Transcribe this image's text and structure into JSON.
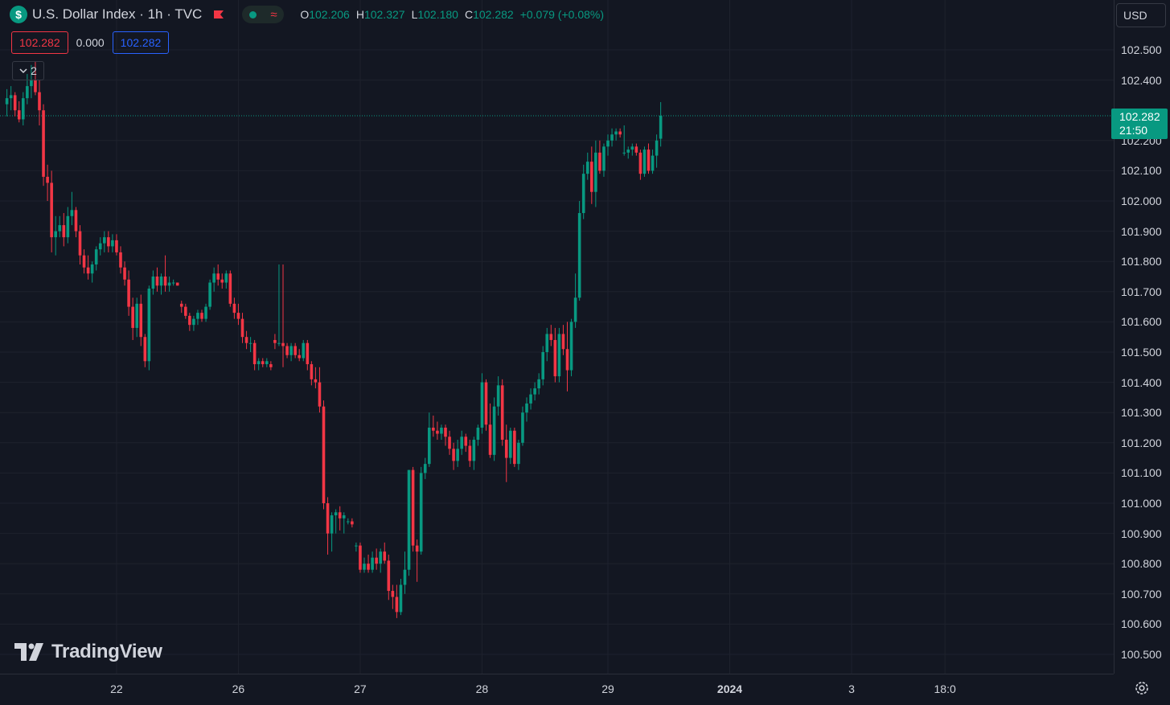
{
  "header": {
    "symbol_icon": "$",
    "title": "U.S. Dollar Index · 1h · TVC",
    "flag_icon": "flag-icon",
    "market_status_icon": "market-open-dot-icon",
    "data_icon": "wave-icon",
    "ohlc": {
      "o_label": "O",
      "o_value": "102.206",
      "h_label": "H",
      "h_value": "102.327",
      "l_label": "L",
      "l_value": "102.180",
      "c_label": "C",
      "c_value": "102.282",
      "change": "+0.079 (+0.08%)"
    }
  },
  "trade": {
    "sell_price": "102.282",
    "spread": "0.000",
    "buy_price": "102.282"
  },
  "indicators_toggle": {
    "count": "2"
  },
  "currency": "USD",
  "last_price": {
    "price": "102.282",
    "countdown": "21:50"
  },
  "logo_text": "TradingView",
  "colors": {
    "background": "#131722",
    "up": "#089981",
    "down": "#f23645",
    "text": "#d1d4dc",
    "grid": "#1e222d"
  },
  "chart_data": {
    "type": "candlestick",
    "ylim": [
      100.45,
      102.62
    ],
    "y_ticks": [
      "102.500",
      "102.400",
      "102.200",
      "102.100",
      "102.000",
      "101.900",
      "101.800",
      "101.700",
      "101.600",
      "101.500",
      "101.400",
      "101.300",
      "101.200",
      "101.100",
      "101.000",
      "100.900",
      "100.800",
      "100.700",
      "100.600",
      "100.500"
    ],
    "x_ticks": [
      {
        "label": "22",
        "bar": 27,
        "bold": false
      },
      {
        "label": "26",
        "bar": 57,
        "bold": false
      },
      {
        "label": "27",
        "bar": 87,
        "bold": false
      },
      {
        "label": "28",
        "bar": 117,
        "bold": false
      },
      {
        "label": "29",
        "bar": 148,
        "bold": false
      },
      {
        "label": "2024",
        "bar": 178,
        "bold": true
      },
      {
        "label": "3",
        "bar": 208,
        "bold": false
      },
      {
        "label": "18:0",
        "bar": 231,
        "bold": false
      }
    ],
    "last_price": 102.282,
    "ohlc": [
      [
        102.32,
        102.37,
        102.28,
        102.34
      ],
      [
        102.34,
        102.38,
        102.3,
        102.35
      ],
      [
        102.35,
        102.36,
        102.28,
        102.3
      ],
      [
        102.3,
        102.33,
        102.26,
        102.27
      ],
      [
        102.27,
        102.36,
        102.25,
        102.34
      ],
      [
        102.34,
        102.42,
        102.32,
        102.38
      ],
      [
        102.38,
        102.45,
        102.34,
        102.4
      ],
      [
        102.4,
        102.46,
        102.35,
        102.36
      ],
      [
        102.36,
        102.4,
        102.25,
        102.3
      ],
      [
        102.3,
        102.32,
        102.05,
        102.08
      ],
      [
        102.08,
        102.12,
        102.0,
        102.06
      ],
      [
        102.06,
        102.1,
        101.83,
        101.88
      ],
      [
        101.88,
        101.95,
        101.82,
        101.9
      ],
      [
        101.9,
        101.95,
        101.88,
        101.92
      ],
      [
        101.92,
        101.96,
        101.85,
        101.88
      ],
      [
        101.88,
        101.98,
        101.86,
        101.95
      ],
      [
        101.95,
        102.03,
        101.92,
        101.97
      ],
      [
        101.97,
        101.98,
        101.88,
        101.9
      ],
      [
        101.9,
        101.92,
        101.79,
        101.82
      ],
      [
        101.82,
        101.84,
        101.76,
        101.78
      ],
      [
        101.78,
        101.82,
        101.74,
        101.76
      ],
      [
        101.76,
        101.8,
        101.73,
        101.79
      ],
      [
        101.79,
        101.85,
        101.77,
        101.84
      ],
      [
        101.84,
        101.88,
        101.82,
        101.86
      ],
      [
        101.86,
        101.9,
        101.83,
        101.88
      ],
      [
        101.88,
        101.9,
        101.83,
        101.85
      ],
      [
        101.85,
        101.89,
        101.83,
        101.87
      ],
      [
        101.87,
        101.89,
        101.82,
        101.83
      ],
      [
        101.83,
        101.85,
        101.76,
        101.78
      ],
      [
        101.78,
        101.8,
        101.72,
        101.74
      ],
      [
        101.74,
        101.77,
        101.62,
        101.65
      ],
      [
        101.65,
        101.68,
        101.54,
        101.58
      ],
      [
        101.58,
        101.68,
        101.55,
        101.66
      ],
      [
        101.66,
        101.69,
        101.52,
        101.55
      ],
      [
        101.55,
        101.56,
        101.45,
        101.47
      ],
      [
        101.47,
        101.72,
        101.44,
        101.71
      ],
      [
        101.71,
        101.77,
        101.69,
        101.75
      ],
      [
        101.75,
        101.78,
        101.7,
        101.72
      ],
      [
        101.72,
        101.76,
        101.69,
        101.75
      ],
      [
        101.75,
        101.82,
        101.7,
        101.72
      ],
      [
        101.72,
        101.75,
        101.7,
        101.73
      ],
      [
        101.73,
        101.74,
        101.72,
        101.73
      ],
      [
        101.73,
        101.73,
        101.72,
        101.72
      ],
      [
        101.66,
        101.67,
        101.63,
        101.65
      ],
      [
        101.65,
        101.66,
        101.61,
        101.62
      ],
      [
        101.62,
        101.63,
        101.57,
        101.59
      ],
      [
        101.59,
        101.62,
        101.57,
        101.61
      ],
      [
        101.61,
        101.64,
        101.59,
        101.63
      ],
      [
        101.63,
        101.64,
        101.6,
        101.61
      ],
      [
        101.61,
        101.66,
        101.6,
        101.65
      ],
      [
        101.65,
        101.74,
        101.64,
        101.73
      ],
      [
        101.73,
        101.78,
        101.7,
        101.76
      ],
      [
        101.76,
        101.79,
        101.72,
        101.74
      ],
      [
        101.74,
        101.76,
        101.71,
        101.73
      ],
      [
        101.73,
        101.77,
        101.71,
        101.76
      ],
      [
        101.76,
        101.77,
        101.65,
        101.66
      ],
      [
        101.66,
        101.68,
        101.61,
        101.63
      ],
      [
        101.63,
        101.66,
        101.59,
        101.61
      ],
      [
        101.61,
        101.63,
        101.53,
        101.55
      ],
      [
        101.55,
        101.57,
        101.51,
        101.53
      ],
      [
        101.53,
        101.55,
        101.5,
        101.53
      ],
      [
        101.53,
        101.54,
        101.44,
        101.46
      ],
      [
        101.46,
        101.48,
        101.44,
        101.47
      ],
      [
        101.47,
        101.48,
        101.45,
        101.46
      ],
      [
        101.46,
        101.48,
        101.45,
        101.47
      ],
      [
        101.46,
        101.47,
        101.44,
        101.45
      ],
      [
        101.54,
        101.56,
        101.51,
        101.53
      ],
      [
        101.53,
        101.79,
        101.52,
        101.53
      ],
      [
        101.53,
        101.79,
        101.45,
        101.52
      ],
      [
        101.52,
        101.53,
        101.48,
        101.49
      ],
      [
        101.49,
        101.53,
        101.47,
        101.52
      ],
      [
        101.52,
        101.53,
        101.48,
        101.49
      ],
      [
        101.49,
        101.51,
        101.47,
        101.48
      ],
      [
        101.48,
        101.54,
        101.47,
        101.53
      ],
      [
        101.53,
        101.54,
        101.44,
        101.46
      ],
      [
        101.46,
        101.47,
        101.39,
        101.41
      ],
      [
        101.41,
        101.45,
        101.38,
        101.4
      ],
      [
        101.4,
        101.45,
        101.3,
        101.32
      ],
      [
        101.32,
        101.34,
        100.98,
        101.0
      ],
      [
        101.0,
        101.02,
        100.83,
        100.9
      ],
      [
        100.9,
        100.97,
        100.84,
        100.96
      ],
      [
        100.96,
        100.98,
        100.9,
        100.97
      ],
      [
        100.97,
        100.99,
        100.91,
        100.95
      ],
      [
        100.95,
        100.97,
        100.9,
        100.96
      ],
      [
        100.94,
        100.95,
        100.93,
        100.94
      ],
      [
        100.94,
        100.95,
        100.92,
        100.93
      ],
      [
        100.86,
        100.87,
        100.84,
        100.86
      ],
      [
        100.86,
        100.87,
        100.77,
        100.78
      ],
      [
        100.78,
        100.82,
        100.77,
        100.8
      ],
      [
        100.8,
        100.83,
        100.77,
        100.78
      ],
      [
        100.78,
        100.84,
        100.77,
        100.82
      ],
      [
        100.82,
        100.85,
        100.78,
        100.8
      ],
      [
        100.8,
        100.85,
        100.77,
        100.84
      ],
      [
        100.84,
        100.87,
        100.8,
        100.81
      ],
      [
        100.81,
        100.83,
        100.68,
        100.71
      ],
      [
        100.71,
        100.73,
        100.65,
        100.69
      ],
      [
        100.69,
        100.73,
        100.62,
        100.64
      ],
      [
        100.64,
        100.75,
        100.63,
        100.73
      ],
      [
        100.73,
        100.84,
        100.7,
        100.78
      ],
      [
        100.78,
        101.11,
        100.76,
        101.11
      ],
      [
        101.11,
        101.12,
        100.84,
        100.86
      ],
      [
        100.86,
        100.88,
        100.74,
        100.84
      ],
      [
        100.84,
        101.12,
        100.83,
        101.1
      ],
      [
        101.1,
        101.15,
        101.08,
        101.13
      ],
      [
        101.13,
        101.3,
        101.12,
        101.25
      ],
      [
        101.25,
        101.29,
        101.22,
        101.24
      ],
      [
        101.24,
        101.27,
        101.21,
        101.23
      ],
      [
        101.23,
        101.26,
        101.21,
        101.25
      ],
      [
        101.25,
        101.26,
        101.19,
        101.22
      ],
      [
        101.22,
        101.24,
        101.16,
        101.18
      ],
      [
        101.18,
        101.2,
        101.11,
        101.14
      ],
      [
        101.14,
        101.21,
        101.12,
        101.18
      ],
      [
        101.18,
        101.24,
        101.16,
        101.22
      ],
      [
        101.22,
        101.23,
        101.17,
        101.19
      ],
      [
        101.19,
        101.21,
        101.12,
        101.14
      ],
      [
        101.14,
        101.22,
        101.11,
        101.21
      ],
      [
        101.21,
        101.26,
        101.19,
        101.25
      ],
      [
        101.25,
        101.43,
        101.23,
        101.4
      ],
      [
        101.4,
        101.41,
        101.24,
        101.26
      ],
      [
        101.26,
        101.33,
        101.15,
        101.16
      ],
      [
        101.16,
        101.35,
        101.14,
        101.32
      ],
      [
        101.32,
        101.42,
        101.29,
        101.39
      ],
      [
        101.39,
        101.41,
        101.19,
        101.21
      ],
      [
        101.21,
        101.26,
        101.07,
        101.15
      ],
      [
        101.15,
        101.25,
        101.13,
        101.24
      ],
      [
        101.24,
        101.25,
        101.12,
        101.13
      ],
      [
        101.13,
        101.21,
        101.11,
        101.2
      ],
      [
        101.2,
        101.32,
        101.19,
        101.3
      ],
      [
        101.3,
        101.35,
        101.27,
        101.33
      ],
      [
        101.33,
        101.38,
        101.31,
        101.36
      ],
      [
        101.36,
        101.4,
        101.34,
        101.38
      ],
      [
        101.38,
        101.43,
        101.36,
        101.41
      ],
      [
        101.41,
        101.52,
        101.39,
        101.5
      ],
      [
        101.5,
        101.58,
        101.47,
        101.56
      ],
      [
        101.56,
        101.59,
        101.52,
        101.54
      ],
      [
        101.54,
        101.58,
        101.4,
        101.42
      ],
      [
        101.42,
        101.58,
        101.4,
        101.56
      ],
      [
        101.56,
        101.59,
        101.49,
        101.51
      ],
      [
        101.51,
        101.6,
        101.37,
        101.44
      ],
      [
        101.44,
        101.61,
        101.42,
        101.6
      ],
      [
        101.6,
        101.76,
        101.58,
        101.68
      ],
      [
        101.68,
        102.0,
        101.67,
        101.96
      ],
      [
        101.96,
        102.12,
        101.94,
        102.09
      ],
      [
        102.09,
        102.16,
        102.07,
        102.13
      ],
      [
        102.13,
        102.18,
        101.99,
        102.03
      ],
      [
        102.03,
        102.2,
        101.98,
        102.16
      ],
      [
        102.16,
        102.2,
        102.09,
        102.1
      ],
      [
        102.1,
        102.19,
        102.08,
        102.18
      ],
      [
        102.18,
        102.22,
        102.15,
        102.2
      ],
      [
        102.2,
        102.24,
        102.18,
        102.22
      ],
      [
        102.22,
        102.24,
        102.2,
        102.23
      ],
      [
        102.23,
        102.24,
        102.21,
        102.22
      ],
      [
        102.16,
        102.25,
        102.15,
        102.16
      ],
      [
        102.16,
        102.18,
        102.14,
        102.17
      ],
      [
        102.17,
        102.19,
        102.15,
        102.18
      ],
      [
        102.18,
        102.19,
        102.15,
        102.16
      ],
      [
        102.16,
        102.17,
        102.07,
        102.09
      ],
      [
        102.09,
        102.18,
        102.08,
        102.17
      ],
      [
        102.17,
        102.19,
        102.09,
        102.1
      ],
      [
        102.1,
        102.17,
        102.09,
        102.15
      ],
      [
        102.15,
        102.22,
        102.11,
        102.2
      ],
      [
        102.206,
        102.327,
        102.18,
        102.282
      ]
    ]
  }
}
